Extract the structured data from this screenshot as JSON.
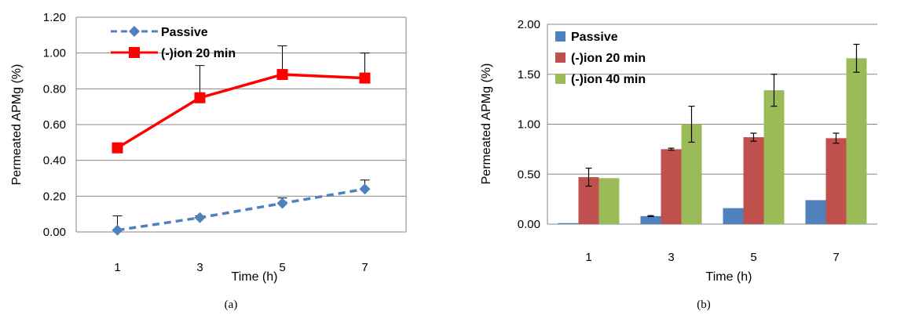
{
  "chart_data": [
    {
      "type": "line",
      "caption": "(a)",
      "xlabel": "Time (h)",
      "ylabel": "Permeated APMg (%)",
      "categories": [
        "1",
        "3",
        "5",
        "7"
      ],
      "ylim": [
        0,
        1.2
      ],
      "yticks": [
        "0.00",
        "0.20",
        "0.40",
        "0.60",
        "0.80",
        "1.00",
        "1.20"
      ],
      "grid": true,
      "legend_position": "top-left",
      "series": [
        {
          "name": "Passive",
          "values": [
            0.01,
            0.08,
            0.16,
            0.24
          ],
          "errors": [
            0.08,
            0.01,
            0.03,
            0.05
          ],
          "color": "#4f81bd",
          "style": "dashed",
          "marker": "diamond"
        },
        {
          "name": "(-)ion 20 min",
          "values": [
            0.47,
            0.75,
            0.88,
            0.86
          ],
          "errors": [
            0,
            0.18,
            0.16,
            0.14
          ],
          "color": "#ff0000",
          "style": "solid",
          "marker": "square"
        }
      ]
    },
    {
      "type": "bar",
      "caption": "(b)",
      "xlabel": "Time (h)",
      "ylabel": "Permeated APMg (%)",
      "categories": [
        "1",
        "3",
        "5",
        "7"
      ],
      "ylim": [
        0,
        2.0
      ],
      "yticks": [
        "0.00",
        "0.50",
        "1.00",
        "1.50",
        "2.00"
      ],
      "grid": true,
      "legend_position": "top-left",
      "series": [
        {
          "name": "Passive",
          "values": [
            0.01,
            0.08,
            0.16,
            0.24
          ],
          "errors": [
            0,
            0.005,
            0,
            0
          ],
          "color": "#4f81bd"
        },
        {
          "name": "(-)ion 20 min",
          "values": [
            0.47,
            0.75,
            0.87,
            0.86
          ],
          "errors": [
            0.09,
            0.01,
            0.04,
            0.05
          ],
          "color": "#c0504d"
        },
        {
          "name": "(-)ion 40 min",
          "values": [
            0.46,
            1.0,
            1.34,
            1.66
          ],
          "errors": [
            0,
            0.18,
            0.16,
            0.14
          ],
          "color": "#9bbb59"
        }
      ]
    }
  ]
}
